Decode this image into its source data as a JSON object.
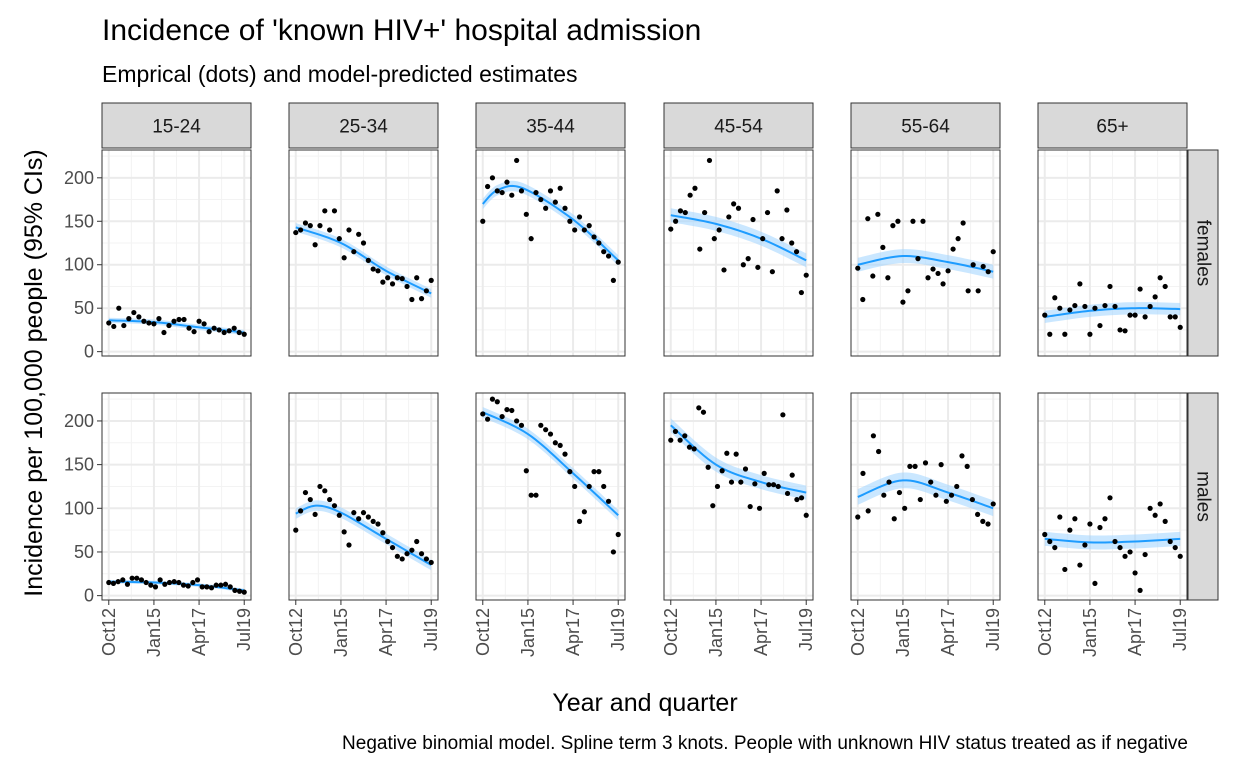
{
  "chart_data": {
    "type": "scatter",
    "title": "Incidence of 'known HIV+' hospital admission",
    "subtitle": "Emprical (dots) and model-predicted estimates",
    "xlabel": "Year and quarter",
    "ylabel": "Incidence per 100,000 people (95% CIs)",
    "caption": "Negative binomial model. Spline term 3 knots. People with unknown HIV status treated as if negative",
    "x_tick_labels": [
      "Oct12",
      "Jan15",
      "Apr17",
      "Jul19"
    ],
    "x_tick_positions": [
      0,
      9,
      18,
      27
    ],
    "y_ticks": [
      0,
      50,
      100,
      150,
      200
    ],
    "ylim": [
      -5,
      232
    ],
    "xlim": [
      -1.35,
      28.35
    ],
    "grid": true,
    "facet_columns": [
      "15-24",
      "25-34",
      "35-44",
      "45-54",
      "55-64",
      "65+"
    ],
    "facet_rows": [
      "females",
      "males"
    ],
    "colors": {
      "fit": "#1E9CFF",
      "ribbon": "#9FD3FF",
      "point": "#000000",
      "strip": "#D9D9D9",
      "grid": "#EBEBEB"
    },
    "panels": [
      {
        "col": "15-24",
        "row": "females",
        "points": [
          33,
          29,
          50,
          30,
          38,
          45,
          40,
          35,
          33,
          32,
          38,
          22,
          30,
          35,
          37,
          37,
          27,
          23,
          35,
          32,
          23,
          27,
          25,
          22,
          24,
          27,
          22,
          20
        ],
        "fit": [
          {
            "x": 0,
            "y": 36
          },
          {
            "x": 9,
            "y": 34
          },
          {
            "x": 18,
            "y": 28
          },
          {
            "x": 27,
            "y": 22
          }
        ],
        "ci_halfwidth": 3
      },
      {
        "col": "25-34",
        "row": "females",
        "points": [
          137,
          140,
          148,
          145,
          123,
          145,
          162,
          140,
          162,
          130,
          108,
          140,
          115,
          135,
          125,
          105,
          95,
          93,
          80,
          85,
          78,
          85,
          84,
          75,
          60,
          85,
          61,
          70,
          82
        ],
        "fit": [
          {
            "x": 0,
            "y": 143
          },
          {
            "x": 9,
            "y": 125
          },
          {
            "x": 18,
            "y": 93
          },
          {
            "x": 27,
            "y": 67
          }
        ],
        "ci_halfwidth": 5
      },
      {
        "col": "35-44",
        "row": "females",
        "points": [
          150,
          190,
          200,
          185,
          183,
          195,
          180,
          220,
          185,
          158,
          130,
          183,
          175,
          165,
          185,
          172,
          188,
          165,
          150,
          140,
          155,
          140,
          145,
          132,
          125,
          115,
          110,
          82,
          103
        ],
        "fit": [
          {
            "x": 0,
            "y": 170
          },
          {
            "x": 3,
            "y": 186
          },
          {
            "x": 8,
            "y": 188
          },
          {
            "x": 18,
            "y": 152
          },
          {
            "x": 27,
            "y": 105
          }
        ],
        "ci_halfwidth": 6
      },
      {
        "col": "45-54",
        "row": "females",
        "points": [
          141,
          150,
          162,
          160,
          180,
          188,
          118,
          160,
          220,
          130,
          140,
          94,
          155,
          170,
          165,
          100,
          107,
          152,
          97,
          130,
          160,
          92,
          185,
          130,
          163,
          125,
          115,
          68,
          88
        ],
        "fit": [
          {
            "x": 0,
            "y": 157
          },
          {
            "x": 9,
            "y": 147
          },
          {
            "x": 18,
            "y": 130
          },
          {
            "x": 27,
            "y": 105
          }
        ],
        "ci_halfwidth": 8
      },
      {
        "col": "55-64",
        "row": "females",
        "points": [
          96,
          60,
          153,
          87,
          158,
          120,
          85,
          145,
          150,
          57,
          70,
          150,
          107,
          150,
          85,
          95,
          90,
          78,
          93,
          118,
          130,
          148,
          70,
          100,
          70,
          98,
          92,
          115
        ],
        "fit": [
          {
            "x": 0,
            "y": 100
          },
          {
            "x": 9,
            "y": 110
          },
          {
            "x": 18,
            "y": 103
          },
          {
            "x": 27,
            "y": 92
          }
        ],
        "ci_halfwidth": 8
      },
      {
        "col": "65+",
        "row": "females",
        "points": [
          42,
          20,
          62,
          50,
          20,
          48,
          53,
          78,
          52,
          20,
          50,
          30,
          53,
          75,
          52,
          25,
          24,
          42,
          42,
          72,
          40,
          52,
          63,
          85,
          75,
          40,
          40,
          28
        ],
        "fit": [
          {
            "x": 0,
            "y": 40
          },
          {
            "x": 9,
            "y": 47
          },
          {
            "x": 18,
            "y": 50
          },
          {
            "x": 27,
            "y": 49
          }
        ],
        "ci_halfwidth": 7
      },
      {
        "col": "15-24",
        "row": "males",
        "points": [
          15,
          14,
          16,
          18,
          13,
          20,
          20,
          18,
          15,
          12,
          10,
          18,
          13,
          15,
          16,
          15,
          12,
          11,
          15,
          18,
          10,
          10,
          9,
          12,
          12,
          13,
          10,
          6,
          5,
          4
        ],
        "fit": [
          {
            "x": 0,
            "y": 16
          },
          {
            "x": 9,
            "y": 15
          },
          {
            "x": 18,
            "y": 12
          },
          {
            "x": 27,
            "y": 6
          }
        ],
        "ci_halfwidth": 2
      },
      {
        "col": "25-34",
        "row": "males",
        "points": [
          75,
          97,
          118,
          110,
          93,
          125,
          120,
          110,
          103,
          92,
          73,
          58,
          95,
          88,
          95,
          90,
          85,
          82,
          72,
          62,
          55,
          45,
          42,
          48,
          52,
          62,
          48,
          42,
          38
        ],
        "fit": [
          {
            "x": 0,
            "y": 94
          },
          {
            "x": 4,
            "y": 103
          },
          {
            "x": 9,
            "y": 95
          },
          {
            "x": 18,
            "y": 65
          },
          {
            "x": 27,
            "y": 35
          }
        ],
        "ci_halfwidth": 6
      },
      {
        "col": "35-44",
        "row": "males",
        "points": [
          208,
          202,
          225,
          222,
          205,
          213,
          212,
          200,
          195,
          143,
          115,
          115,
          195,
          190,
          185,
          175,
          172,
          162,
          142,
          125,
          85,
          96,
          125,
          142,
          142,
          125,
          108,
          50,
          70
        ],
        "fit": [
          {
            "x": 0,
            "y": 210
          },
          {
            "x": 9,
            "y": 185
          },
          {
            "x": 18,
            "y": 140
          },
          {
            "x": 27,
            "y": 92
          }
        ],
        "ci_halfwidth": 6
      },
      {
        "col": "45-54",
        "row": "males",
        "points": [
          178,
          188,
          178,
          183,
          170,
          168,
          215,
          210,
          147,
          103,
          125,
          143,
          163,
          130,
          162,
          130,
          145,
          102,
          128,
          100,
          140,
          127,
          127,
          125,
          207,
          117,
          138,
          110,
          112,
          92
        ],
        "fit": [
          {
            "x": 0,
            "y": 195
          },
          {
            "x": 9,
            "y": 150
          },
          {
            "x": 18,
            "y": 130
          },
          {
            "x": 27,
            "y": 118
          }
        ],
        "ci_halfwidth": 8
      },
      {
        "col": "55-64",
        "row": "males",
        "points": [
          90,
          140,
          97,
          183,
          165,
          115,
          130,
          88,
          118,
          100,
          148,
          148,
          110,
          152,
          130,
          115,
          150,
          108,
          115,
          125,
          160,
          148,
          110,
          93,
          85,
          82,
          105
        ],
        "fit": [
          {
            "x": 0,
            "y": 113
          },
          {
            "x": 9,
            "y": 132
          },
          {
            "x": 18,
            "y": 118
          },
          {
            "x": 27,
            "y": 100
          }
        ],
        "ci_halfwidth": 9
      },
      {
        "col": "65+",
        "row": "males",
        "points": [
          70,
          62,
          55,
          90,
          30,
          75,
          88,
          35,
          58,
          82,
          14,
          78,
          88,
          112,
          62,
          55,
          45,
          50,
          26,
          6,
          47,
          100,
          92,
          105,
          85,
          62,
          55,
          45
        ],
        "fit": [
          {
            "x": 0,
            "y": 65
          },
          {
            "x": 9,
            "y": 61
          },
          {
            "x": 18,
            "y": 62
          },
          {
            "x": 27,
            "y": 65
          }
        ],
        "ci_halfwidth": 8
      }
    ]
  }
}
